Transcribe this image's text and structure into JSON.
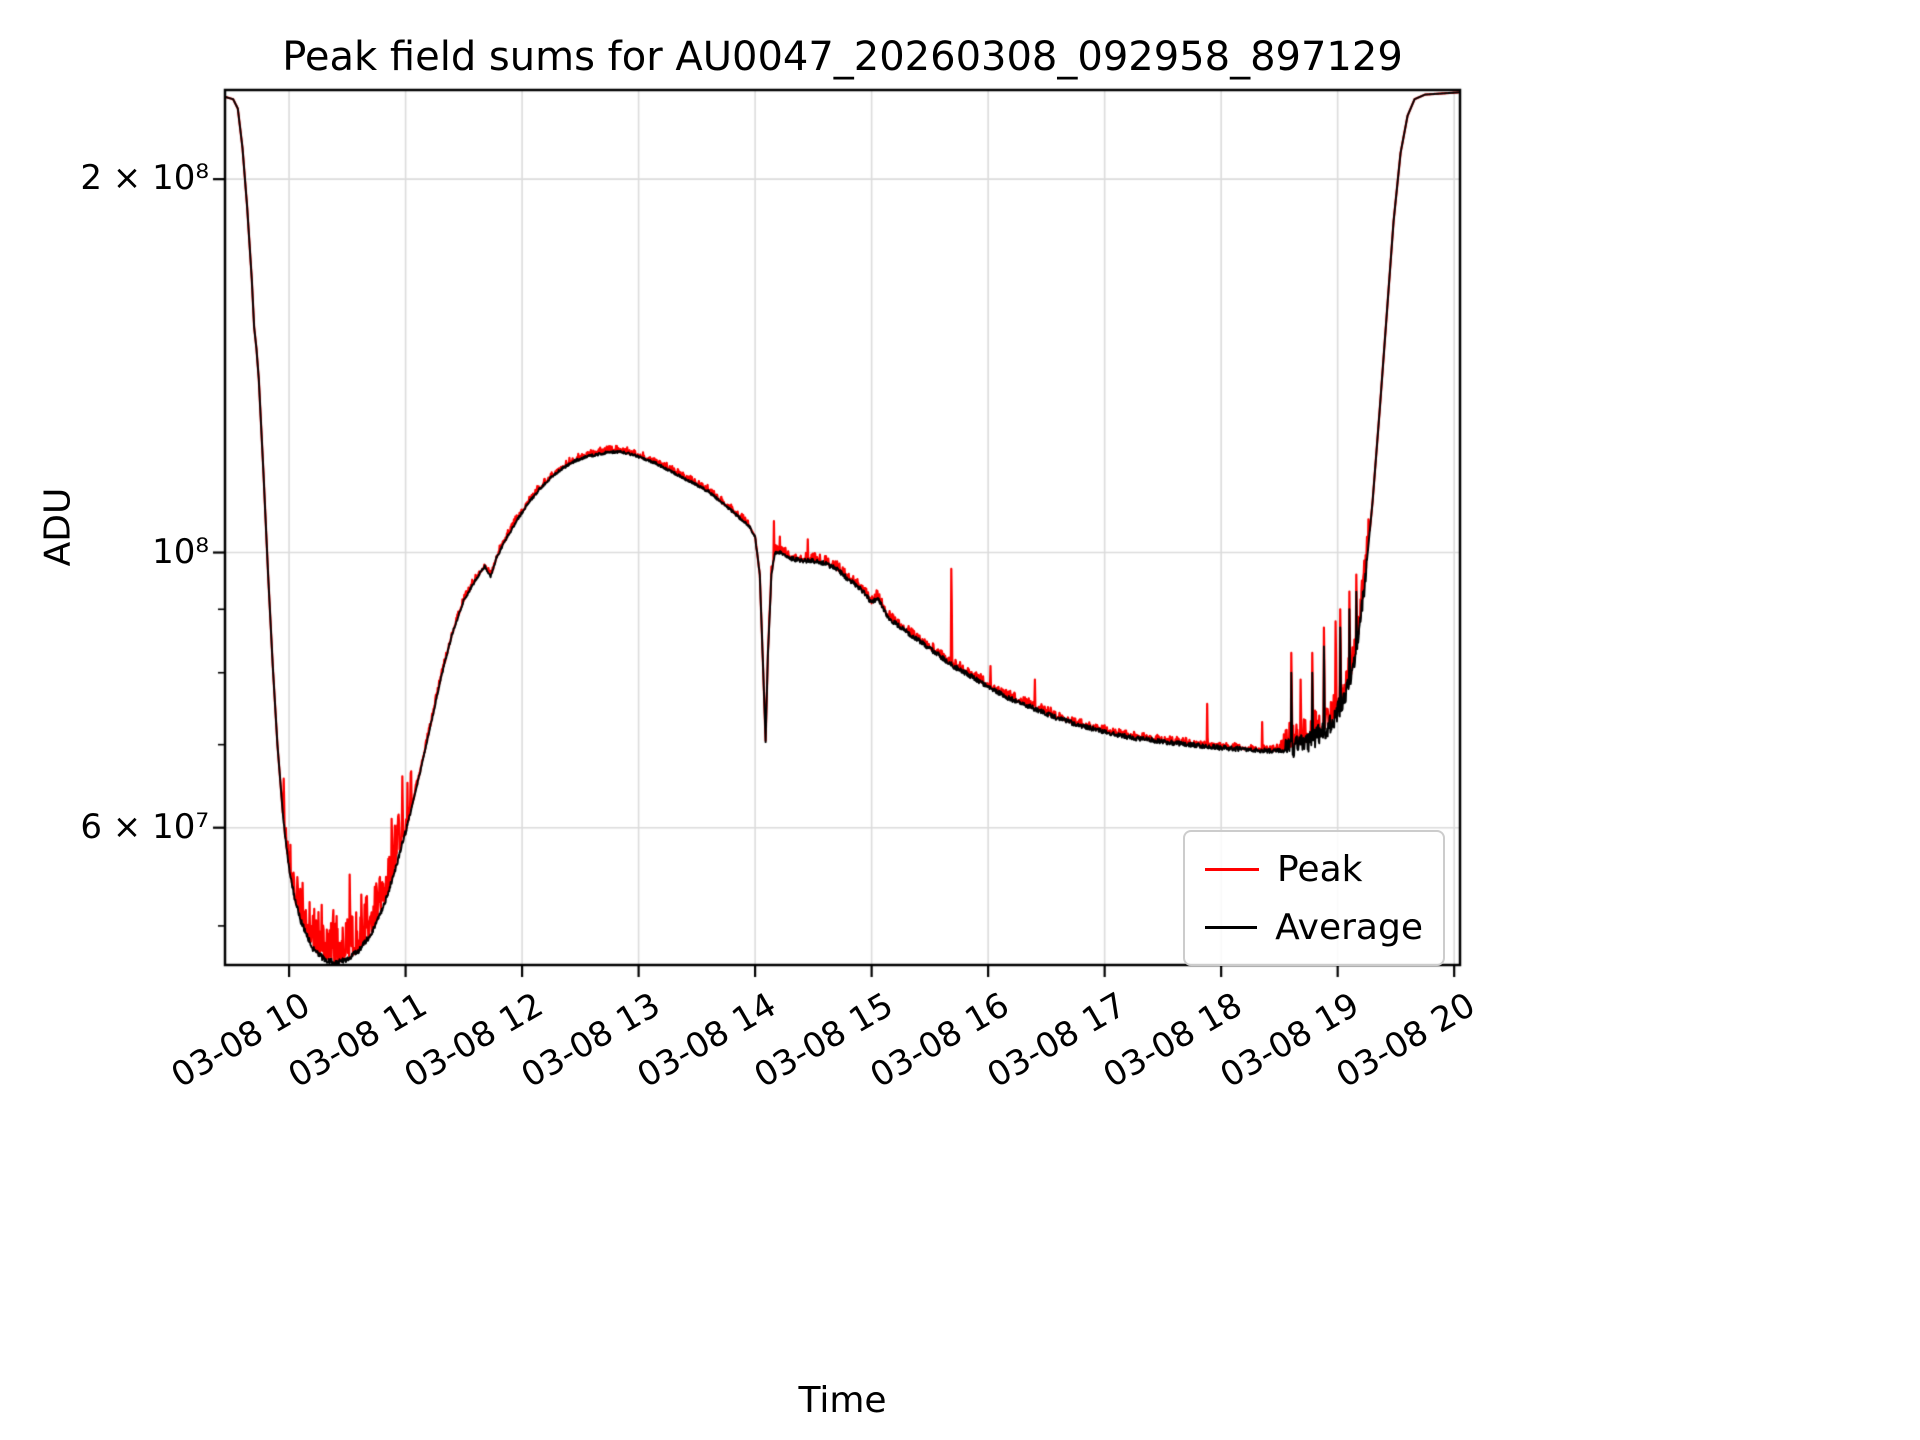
{
  "chart_data": {
    "type": "line",
    "title": "Peak field sums for AU0047_20260308_092958_897129",
    "xlabel": "Time",
    "ylabel": "ADU",
    "y_scale": "log",
    "grid": true,
    "grid_color": "#dcdcdc",
    "x_domain_hours": [
      9.45,
      20.05
    ],
    "y_domain": [
      46500000,
      236000000
    ],
    "x_ticks": [
      {
        "hour": 10,
        "label": "03-08 10"
      },
      {
        "hour": 11,
        "label": "03-08 11"
      },
      {
        "hour": 12,
        "label": "03-08 12"
      },
      {
        "hour": 13,
        "label": "03-08 13"
      },
      {
        "hour": 14,
        "label": "03-08 14"
      },
      {
        "hour": 15,
        "label": "03-08 15"
      },
      {
        "hour": 16,
        "label": "03-08 16"
      },
      {
        "hour": 17,
        "label": "03-08 17"
      },
      {
        "hour": 18,
        "label": "03-08 18"
      },
      {
        "hour": 19,
        "label": "03-08 19"
      },
      {
        "hour": 20,
        "label": "03-08 20"
      }
    ],
    "y_major_ticks": [
      {
        "value": 60000000,
        "label": "6 × 10⁷"
      },
      {
        "value": 100000000,
        "label": "10⁸"
      },
      {
        "value": 200000000,
        "label": "2 × 10⁸"
      }
    ],
    "y_minor_ticks": [
      50000000,
      70000000,
      80000000,
      90000000
    ],
    "legend": {
      "position": "lower right",
      "entries": [
        {
          "label": "Peak",
          "color": "#ff0000"
        },
        {
          "label": "Average",
          "color": "#000000"
        }
      ]
    },
    "average_control_points": [
      [
        9.45,
        233000000.0
      ],
      [
        9.52,
        232000000.0
      ],
      [
        9.56,
        228000000.0
      ],
      [
        9.6,
        212000000.0
      ],
      [
        9.64,
        190000000.0
      ],
      [
        9.68,
        166000000.0
      ],
      [
        9.7,
        152000000.0
      ],
      [
        9.72,
        146000000.0
      ],
      [
        9.74,
        138000000.0
      ],
      [
        9.78,
        116000000.0
      ],
      [
        9.82,
        96000000.0
      ],
      [
        9.86,
        81000000.0
      ],
      [
        9.9,
        70000000.0
      ],
      [
        9.95,
        61000000.0
      ],
      [
        10.0,
        55500000.0
      ],
      [
        10.05,
        52500000.0
      ],
      [
        10.1,
        50500000.0
      ],
      [
        10.2,
        48000000.0
      ],
      [
        10.3,
        47000000.0
      ],
      [
        10.4,
        46700000.0
      ],
      [
        10.5,
        47000000.0
      ],
      [
        10.6,
        47800000.0
      ],
      [
        10.7,
        49200000.0
      ],
      [
        10.8,
        51500000.0
      ],
      [
        10.9,
        55000000.0
      ],
      [
        11.0,
        59500000.0
      ],
      [
        11.1,
        65000000.0
      ],
      [
        11.2,
        71500000.0
      ],
      [
        11.3,
        79000000.0
      ],
      [
        11.4,
        86000000.0
      ],
      [
        11.5,
        91500000.0
      ],
      [
        11.6,
        95000000.0
      ],
      [
        11.68,
        97500000.0
      ],
      [
        11.73,
        95500000.0
      ],
      [
        11.78,
        99000000.0
      ],
      [
        11.85,
        102000000.0
      ],
      [
        11.95,
        106000000.0
      ],
      [
        12.05,
        109500000.0
      ],
      [
        12.15,
        112500000.0
      ],
      [
        12.25,
        115000000.0
      ],
      [
        12.35,
        117000000.0
      ],
      [
        12.45,
        118500000.0
      ],
      [
        12.55,
        119500000.0
      ],
      [
        12.65,
        120000000.0
      ],
      [
        12.75,
        120500000.0
      ],
      [
        12.85,
        120500000.0
      ],
      [
        12.95,
        120000000.0
      ],
      [
        13.05,
        119000000.0
      ],
      [
        13.15,
        118000000.0
      ],
      [
        13.3,
        116000000.0
      ],
      [
        13.45,
        114000000.0
      ],
      [
        13.6,
        112000000.0
      ],
      [
        13.75,
        109000000.0
      ],
      [
        13.85,
        107000000.0
      ],
      [
        13.95,
        105000000.0
      ],
      [
        14.0,
        103000000.0
      ],
      [
        14.04,
        96000000.0
      ],
      [
        14.07,
        80000000.0
      ],
      [
        14.09,
        70500000.0
      ],
      [
        14.11,
        83000000.0
      ],
      [
        14.14,
        96000000.0
      ],
      [
        14.17,
        100000000.0
      ],
      [
        14.22,
        100000000.0
      ],
      [
        14.3,
        99000000.0
      ],
      [
        14.4,
        98500000.0
      ],
      [
        14.5,
        98500000.0
      ],
      [
        14.6,
        98000000.0
      ],
      [
        14.7,
        97000000.0
      ],
      [
        14.78,
        95500000.0
      ],
      [
        14.85,
        94500000.0
      ],
      [
        14.95,
        92500000.0
      ],
      [
        15.0,
        91000000.0
      ],
      [
        15.05,
        92000000.0
      ],
      [
        15.1,
        90000000.0
      ],
      [
        15.15,
        88500000.0
      ],
      [
        15.25,
        87000000.0
      ],
      [
        15.4,
        85000000.0
      ],
      [
        15.55,
        83000000.0
      ],
      [
        15.7,
        81000000.0
      ],
      [
        15.85,
        79500000.0
      ],
      [
        16.0,
        78000000.0
      ],
      [
        16.15,
        76500000.0
      ],
      [
        16.3,
        75500000.0
      ],
      [
        16.45,
        74500000.0
      ],
      [
        16.6,
        73500000.0
      ],
      [
        16.8,
        72500000.0
      ],
      [
        17.0,
        71700000.0
      ],
      [
        17.2,
        71000000.0
      ],
      [
        17.4,
        70600000.0
      ],
      [
        17.6,
        70200000.0
      ],
      [
        17.8,
        69900000.0
      ],
      [
        18.0,
        69600000.0
      ],
      [
        18.2,
        69400000.0
      ],
      [
        18.4,
        69200000.0
      ],
      [
        18.55,
        69300000.0
      ],
      [
        18.65,
        69800000.0
      ],
      [
        18.75,
        70500000.0
      ],
      [
        18.85,
        71500000.0
      ],
      [
        18.95,
        73000000.0
      ],
      [
        19.05,
        76000000.0
      ],
      [
        19.12,
        80000000.0
      ],
      [
        19.18,
        86000000.0
      ],
      [
        19.24,
        96000000.0
      ],
      [
        19.3,
        110000000.0
      ],
      [
        19.36,
        130000000.0
      ],
      [
        19.42,
        155000000.0
      ],
      [
        19.48,
        185000000.0
      ],
      [
        19.54,
        210000000.0
      ],
      [
        19.6,
        225000000.0
      ],
      [
        19.66,
        232000000.0
      ],
      [
        19.75,
        234000000.0
      ],
      [
        20.05,
        235000000.0
      ]
    ],
    "peak_spikes": [
      [
        10.28,
        52000000.0
      ],
      [
        10.38,
        51500000.0
      ],
      [
        10.52,
        55000000.0
      ],
      [
        10.62,
        53000000.0
      ],
      [
        10.88,
        61000000.0
      ],
      [
        10.97,
        66000000.0
      ],
      [
        14.16,
        106000000.0
      ],
      [
        14.21,
        103000000.0
      ],
      [
        14.45,
        102500000.0
      ],
      [
        15.68,
        97000000.0
      ],
      [
        16.02,
        81000000.0
      ],
      [
        16.4,
        79000000.0
      ],
      [
        17.88,
        75500000.0
      ],
      [
        18.35,
        73000000.0
      ],
      [
        18.6,
        83000000.0
      ],
      [
        18.68,
        79000000.0
      ],
      [
        18.78,
        83000000.0
      ],
      [
        18.88,
        87000000.0
      ],
      [
        18.98,
        88000000.0
      ],
      [
        19.02,
        90000000.0
      ],
      [
        19.1,
        93000000.0
      ],
      [
        19.16,
        96000000.0
      ]
    ],
    "average_spikes": [
      [
        18.6,
        80000000.0
      ],
      [
        18.78,
        80000000.0
      ],
      [
        18.88,
        84000000.0
      ],
      [
        19.02,
        87000000.0
      ],
      [
        19.1,
        90000000.0
      ],
      [
        19.16,
        93000000.0
      ]
    ],
    "peak_noise_regions": [
      [
        9.95,
        11.05,
        0.09
      ],
      [
        11.05,
        13.95,
        0.012
      ],
      [
        14.12,
        16.55,
        0.015
      ],
      [
        16.55,
        18.5,
        0.012
      ],
      [
        18.5,
        19.28,
        0.05
      ]
    ],
    "average_noise_regions": [
      [
        9.95,
        11.05,
        0.01
      ],
      [
        11.1,
        14.3,
        0.005
      ],
      [
        14.3,
        18.55,
        0.009
      ],
      [
        18.55,
        19.25,
        0.04
      ]
    ]
  }
}
